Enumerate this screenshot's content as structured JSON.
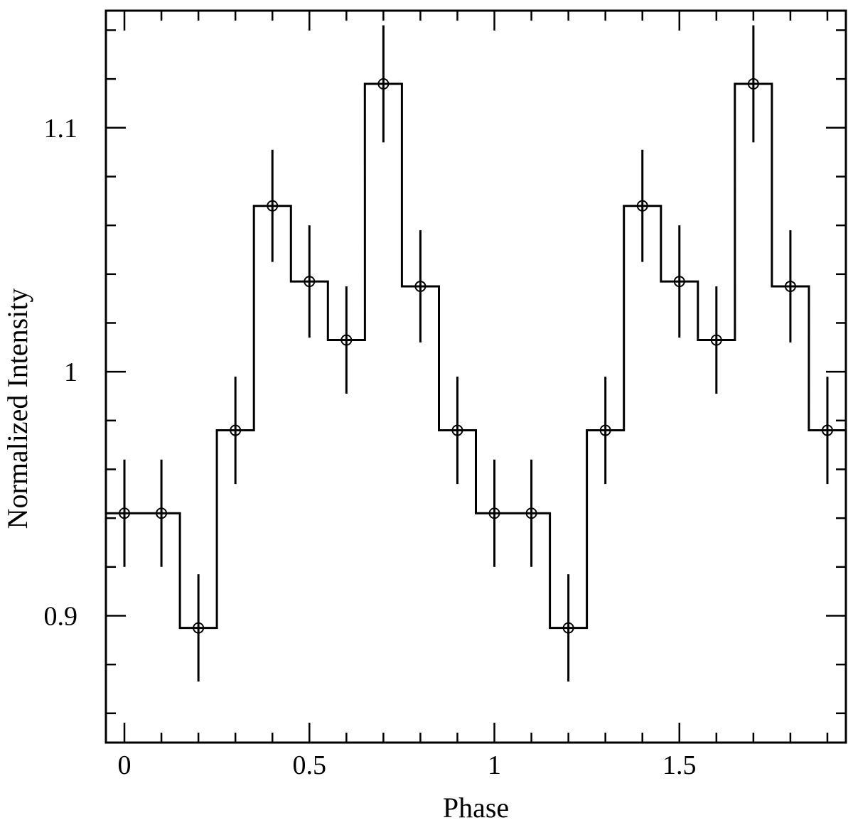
{
  "chart_data": {
    "type": "line",
    "style": "step histogram with error bars and circle markers",
    "title": "",
    "xlabel": "Phase",
    "ylabel": "Normalized Intensity",
    "xlim": [
      -0.05,
      1.95
    ],
    "ylim": [
      0.848,
      1.148
    ],
    "x_ticks": [
      0,
      0.5,
      1,
      1.5
    ],
    "x_tick_labels": [
      "0",
      "0.5",
      "1",
      "1.5"
    ],
    "x_minor_step": 0.1,
    "y_ticks": [
      0.9,
      1.0,
      1.1
    ],
    "y_tick_labels": [
      "0.9",
      "1",
      "1.1"
    ],
    "y_minor_step": 0.02,
    "bin_width": 0.1,
    "grid": false,
    "series": [
      {
        "x": [
          0,
          0.1,
          0.2,
          0.3,
          0.4,
          0.5,
          0.6,
          0.7,
          0.8,
          0.9,
          1.0,
          1.1,
          1.2,
          1.3,
          1.4,
          1.5,
          1.6,
          1.7,
          1.8,
          1.9
        ],
        "y": [
          0.942,
          0.942,
          0.895,
          0.976,
          1.068,
          1.037,
          1.013,
          1.118,
          1.035,
          0.976,
          0.942,
          0.942,
          0.895,
          0.976,
          1.068,
          1.037,
          1.013,
          1.118,
          1.035,
          0.976
        ],
        "yerr": [
          0.022,
          0.022,
          0.022,
          0.022,
          0.023,
          0.023,
          0.022,
          0.024,
          0.023,
          0.022,
          0.022,
          0.022,
          0.022,
          0.022,
          0.023,
          0.023,
          0.022,
          0.024,
          0.023,
          0.022
        ]
      }
    ]
  }
}
